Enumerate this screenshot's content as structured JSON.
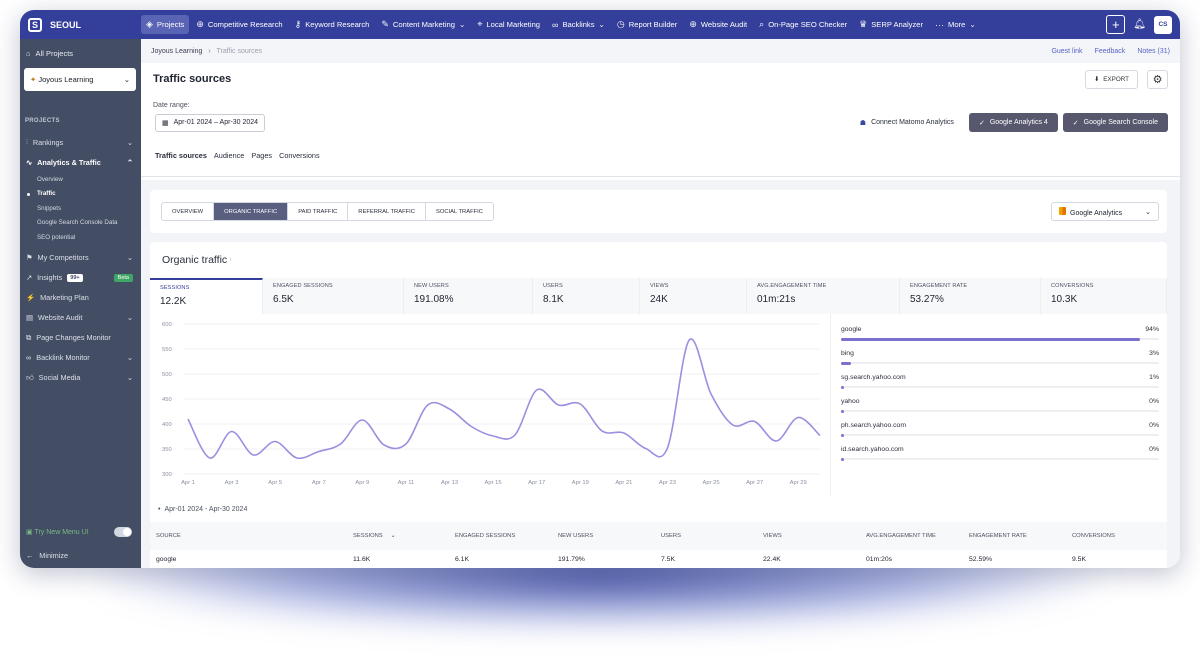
{
  "app": {
    "brand": "SEOUL"
  },
  "nav": [
    {
      "label": "Projects",
      "icon": "layers-icon",
      "active": true
    },
    {
      "label": "Competitive Research",
      "icon": "globe-icon"
    },
    {
      "label": "Keyword Research",
      "icon": "key-icon"
    },
    {
      "label": "Content Marketing",
      "icon": "edit-icon",
      "chevron": true
    },
    {
      "label": "Local Marketing",
      "icon": "pin-icon"
    },
    {
      "label": "Backlinks",
      "icon": "link-icon",
      "chevron": true
    },
    {
      "label": "Report Builder",
      "icon": "clock-icon"
    },
    {
      "label": "Website Audit",
      "icon": "globe-icon"
    },
    {
      "label": "On-Page SEO Checker",
      "icon": "search-icon"
    },
    {
      "label": "SERP Analyzer",
      "icon": "crown-icon"
    },
    {
      "label": "More",
      "icon": "dots-icon",
      "chevron": true
    }
  ],
  "user": {
    "initials": "CS"
  },
  "sidebar": {
    "all_projects": "All Projects",
    "project": "Joyous Learning",
    "section_label": "PROJECTS",
    "items_top": [
      {
        "label": "Rankings",
        "chevron": "⌄"
      },
      {
        "label": "Analytics & Traffic",
        "chevron": "⌃",
        "open": true
      }
    ],
    "subitems": [
      {
        "label": "Overview"
      },
      {
        "label": "Traffic",
        "active": true
      },
      {
        "label": "Snippets"
      },
      {
        "label": "Google Search Console Data"
      },
      {
        "label": "SEO potential"
      }
    ],
    "items_bottom": [
      {
        "label": "My Competitors",
        "chevron": "⌄"
      },
      {
        "label": "Insights",
        "badge": "99+",
        "beta": "Beta"
      },
      {
        "label": "Marketing Plan"
      },
      {
        "label": "Website Audit",
        "chevron": "⌄"
      },
      {
        "label": "Page Changes Monitor"
      },
      {
        "label": "Backlink Monitor",
        "chevron": "⌄"
      },
      {
        "label": "Social Media",
        "chevron": "⌄"
      }
    ],
    "try_new": "Try New Menu UI",
    "minimize": "Minimize"
  },
  "breadcrumb": {
    "project": "Joyous Learning",
    "sep": "›",
    "page": "Traffic sources"
  },
  "top_links": {
    "guest": "Guest link",
    "feedback": "Feedback",
    "notes": "Notes (31)"
  },
  "page": {
    "title": "Traffic sources",
    "export": "EXPORT"
  },
  "date": {
    "label": "Date range:",
    "value": "Apr-01 2024 – Apr-30 2024"
  },
  "connect": {
    "matomo": "Connect Matomo Analytics",
    "ga4": "Google Analytics 4",
    "gsc": "Google Search Console"
  },
  "tabs": [
    "Traffic sources",
    "Audience",
    "Pages",
    "Conversions"
  ],
  "segments": [
    "OVERVIEW",
    "ORGANIC TRAFFIC",
    "PAID TRAFFIC",
    "REFERRAL TRAFFIC",
    "SOCIAL TRAFFIC"
  ],
  "ga_select": "Google Analytics",
  "card": {
    "title": "Organic traffic",
    "info": "ⁱ"
  },
  "metrics": [
    {
      "label": "SESSIONS",
      "value": "12.2K"
    },
    {
      "label": "ENGAGED SESSIONS",
      "value": "6.5K"
    },
    {
      "label": "NEW USERS",
      "value": "191.08%"
    },
    {
      "label": "USERS",
      "value": "8.1K"
    },
    {
      "label": "VIEWS",
      "value": "24K"
    },
    {
      "label": "AVG.ENGAGEMENT TIME",
      "value": "01m:21s"
    },
    {
      "label": "ENGAGEMENT RATE",
      "value": "53.27%"
    },
    {
      "label": "CONVERSIONS",
      "value": "10.3K"
    }
  ],
  "sources": [
    {
      "name": "google",
      "pct": "94%",
      "value": 94
    },
    {
      "name": "bing",
      "pct": "3%",
      "value": 3
    },
    {
      "name": "sg.search.yahoo.com",
      "pct": "1%",
      "value": 1
    },
    {
      "name": "yahoo",
      "pct": "0%",
      "value": 0
    },
    {
      "name": "ph.search.yahoo.com",
      "pct": "0%",
      "value": 0
    },
    {
      "name": "id.search.yahoo.com",
      "pct": "0%",
      "value": 0
    }
  ],
  "legend_range": "Apr-01 2024 - Apr-30 2024",
  "table": {
    "headers": [
      "SOURCE",
      "SESSIONS",
      "ENGAGED SESSIONS",
      "NEW USERS",
      "USERS",
      "VIEWS",
      "AVG.ENGAGEMENT TIME",
      "ENGAGEMENT RATE",
      "CONVERSIONS"
    ],
    "sort_indicator": "⌄",
    "rows": [
      [
        "google",
        "11.6K",
        "6.1K",
        "191.79%",
        "7.5K",
        "22.4K",
        "01m:20s",
        "52.59%",
        "9.5K"
      ]
    ]
  },
  "colors": {
    "accent": "#343f9b",
    "line": "#9a8fe0",
    "bar": "#7b6fd0",
    "sidebar": "#434d63"
  },
  "chart_data": {
    "type": "line",
    "y_ticks": [
      "600",
      "550",
      "500",
      "450",
      "400",
      "350",
      "300"
    ],
    "ylim": [
      300,
      600
    ],
    "x_tick_labels": [
      "Apr 1",
      "Apr 3",
      "Apr 5",
      "Apr 7",
      "Apr 9",
      "Apr 11",
      "Apr 13",
      "Apr 15",
      "Apr 17",
      "Apr 19",
      "Apr 21",
      "Apr 23",
      "Apr 25",
      "Apr 27",
      "Apr 29"
    ],
    "x": [
      "Apr 1",
      "Apr 2",
      "Apr 3",
      "Apr 4",
      "Apr 5",
      "Apr 6",
      "Apr 7",
      "Apr 8",
      "Apr 9",
      "Apr 10",
      "Apr 11",
      "Apr 12",
      "Apr 13",
      "Apr 14",
      "Apr 15",
      "Apr 16",
      "Apr 17",
      "Apr 18",
      "Apr 19",
      "Apr 20",
      "Apr 21",
      "Apr 22",
      "Apr 23",
      "Apr 24",
      "Apr 25",
      "Apr 26",
      "Apr 27",
      "Apr 28",
      "Apr 29",
      "Apr 30"
    ],
    "series": [
      {
        "values": [
          410,
          332,
          385,
          338,
          365,
          332,
          345,
          360,
          408,
          358,
          360,
          438,
          430,
          395,
          376,
          378,
          468,
          438,
          440,
          386,
          382,
          351,
          352,
          568,
          460,
          398,
          405,
          366,
          413,
          377
        ]
      }
    ],
    "grid": "horizontal"
  }
}
